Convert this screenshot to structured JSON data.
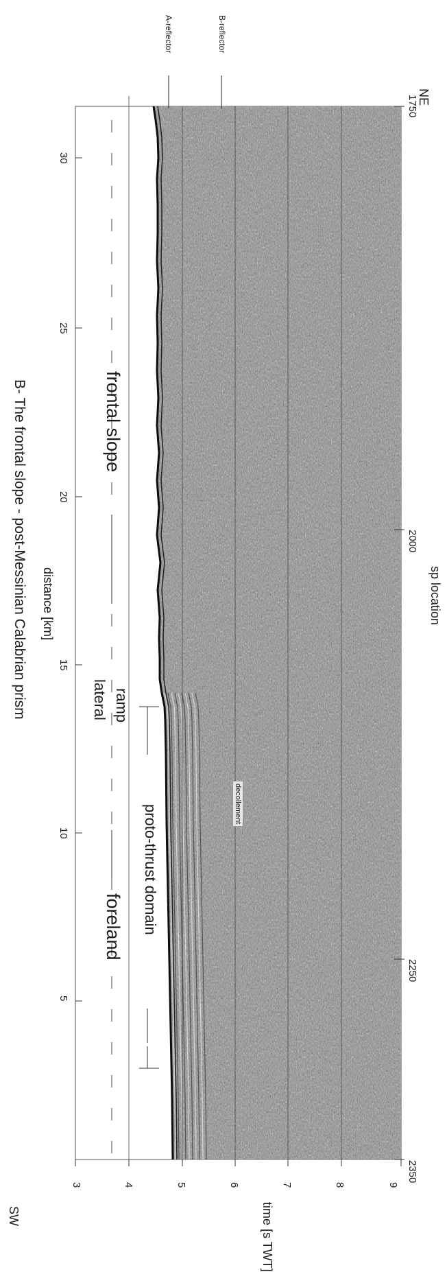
{
  "title": "B- The frontal slope - post-Messinian Calabrian prism",
  "distance_axis": {
    "label": "distance [km]",
    "ticks": [
      "5",
      "10",
      "15",
      "20",
      "25",
      "30"
    ]
  },
  "sp_axis": {
    "label": "sp location",
    "ticks": [
      "2350",
      "2250",
      "2000",
      "1750"
    ]
  },
  "time_axis": {
    "label": "time [s TWT]",
    "ticks": [
      "3",
      "4",
      "5",
      "6",
      "7",
      "8",
      "9"
    ]
  },
  "orientation": {
    "start": "SW",
    "end": "NE"
  },
  "reflectors": {
    "a": "A-reflector",
    "b": "B-reflector"
  },
  "domains": {
    "foreland": "foreland",
    "proto_thrust": "proto-thrust domain",
    "lateral": "lateral",
    "ramp": "ramp",
    "frontal_slope": "frontal slope"
  },
  "annotations": {
    "decollement": "decollement"
  },
  "colors": {
    "seismic_bg": "#8a8a8a",
    "seafloor": "#0d0d0d",
    "line": "#333333"
  }
}
